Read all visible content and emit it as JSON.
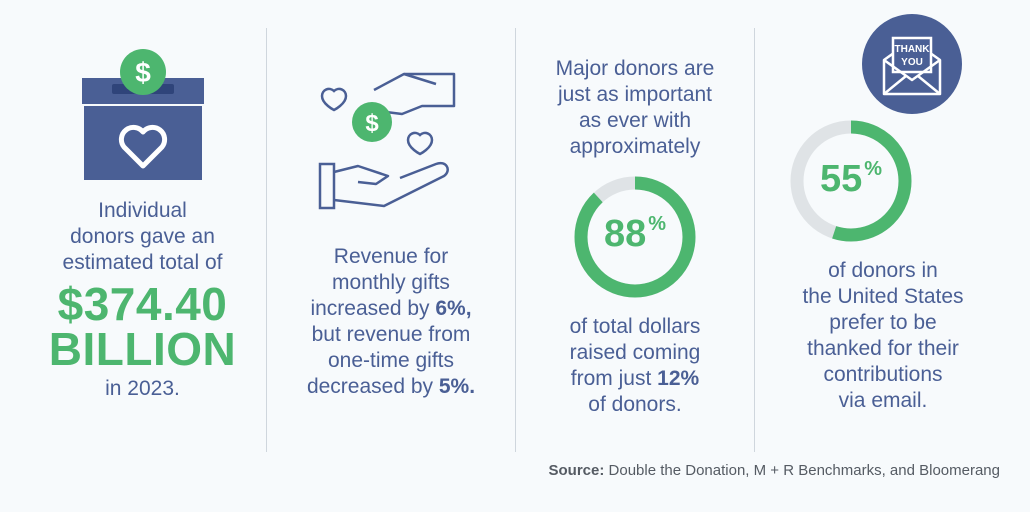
{
  "col1": {
    "line1": "Individual",
    "line2": "donors gave an",
    "line3": "estimated total of",
    "amount": "$374.40",
    "unit": "BILLION",
    "year": "in 2023."
  },
  "col2": {
    "line1": "Revenue for",
    "line2": "monthly gifts",
    "line3a": "increased by ",
    "pct1": "6%,",
    "line4": "but revenue from",
    "line5": "one-time gifts",
    "line6a": "decreased by ",
    "pct2": "5%."
  },
  "col3": {
    "line1": "Major donors are",
    "line2": "just as important",
    "line3": "as ever with",
    "line4": "approximately",
    "ring_value": "88",
    "ring_unit": "%",
    "line5": "of total dollars",
    "line6": "raised coming",
    "line7a": "from just ",
    "pct": "12%",
    "line8": "of donors."
  },
  "col4": {
    "thank_line1": "THANK",
    "thank_line2": "YOU",
    "ring_value": "55",
    "ring_unit": "%",
    "line1": "of donors in",
    "line2": "the United States",
    "line3": "prefer to be",
    "line4": "thanked for their",
    "line5": "contributions",
    "line6": "via email."
  },
  "source": {
    "label": "Source:",
    "text": " Double the Donation, M + R Benchmarks, and Bloomerang"
  },
  "icons": {
    "donation_box": "donation-box-icon",
    "hand_money": "hand-giving-money-icon",
    "thank_you_envelope": "thank-you-envelope-icon"
  },
  "metrics": {
    "ring_88_fraction": 0.88,
    "ring_55_fraction": 0.55
  },
  "colors": {
    "navy": "#4a5f95",
    "green": "#4db66f",
    "ring_track": "#dfe3e6",
    "background": "#f7fafc"
  }
}
